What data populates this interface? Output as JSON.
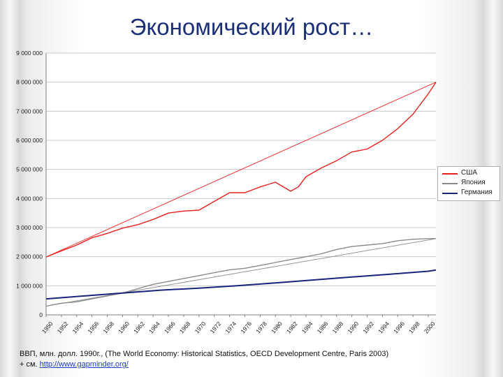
{
  "slide": {
    "title": "Экономический рост…",
    "footer_line1": "ВВП, млн. долл. 1990г., (The World Economy: Historical Statistics, OECD Development Centre,  Paris 2003)",
    "footer_prefix": "+ см. ",
    "footer_link": "http://www.gapminder.org/"
  },
  "chart_data": {
    "type": "line",
    "x_ticks": [
      "1950",
      "1952",
      "1954",
      "1956",
      "1958",
      "1960",
      "1962",
      "1964",
      "1966",
      "1968",
      "1970",
      "1972",
      "1974",
      "1976",
      "1978",
      "1980",
      "1982",
      "1984",
      "1986",
      "1988",
      "1990",
      "1992",
      "1994",
      "1996",
      "1998",
      "2000"
    ],
    "y_ticks": [
      "0",
      "1 000 000",
      "2 000 000",
      "3 000 000",
      "4 000 000",
      "5 000 000",
      "6 000 000",
      "7 000 000",
      "8 000 000",
      "9 000 000"
    ],
    "ylim": [
      0,
      9000000
    ],
    "xlim": [
      1950,
      2001
    ],
    "grid": true,
    "legend_position": "right",
    "series": [
      {
        "name": "США",
        "color": "#e8211e",
        "x": [
          1950,
          1952,
          1954,
          1956,
          1958,
          1960,
          1962,
          1964,
          1966,
          1968,
          1970,
          1972,
          1974,
          1976,
          1978,
          1980,
          1982,
          1983,
          1984,
          1986,
          1988,
          1990,
          1992,
          1994,
          1996,
          1998,
          2000,
          2001
        ],
        "values": [
          1990000,
          2200000,
          2400000,
          2650000,
          2800000,
          2980000,
          3100000,
          3280000,
          3500000,
          3570000,
          3600000,
          3900000,
          4200000,
          4200000,
          4400000,
          4560000,
          4250000,
          4400000,
          4750000,
          5050000,
          5300000,
          5600000,
          5700000,
          6000000,
          6400000,
          6900000,
          7600000,
          8000000
        ]
      },
      {
        "name": "Япония",
        "color": "#8a8a8a",
        "x": [
          1950,
          1952,
          1954,
          1956,
          1958,
          1960,
          1962,
          1964,
          1966,
          1968,
          1970,
          1972,
          1974,
          1976,
          1978,
          1980,
          1982,
          1984,
          1986,
          1988,
          1990,
          1992,
          1994,
          1996,
          1998,
          2000,
          2001
        ],
        "values": [
          300000,
          400000,
          450000,
          550000,
          650000,
          750000,
          900000,
          1050000,
          1150000,
          1250000,
          1350000,
          1450000,
          1550000,
          1600000,
          1700000,
          1800000,
          1900000,
          2000000,
          2100000,
          2250000,
          2350000,
          2400000,
          2450000,
          2550000,
          2600000,
          2620000,
          2620000
        ]
      },
      {
        "name": "Германия",
        "color": "#1a237e",
        "x": [
          1950,
          1955,
          1960,
          1965,
          1970,
          1975,
          1980,
          1985,
          1990,
          1995,
          2000,
          2001
        ],
        "values": [
          550000,
          650000,
          750000,
          850000,
          920000,
          1000000,
          1100000,
          1200000,
          1300000,
          1400000,
          1500000,
          1540000
        ]
      }
    ]
  }
}
